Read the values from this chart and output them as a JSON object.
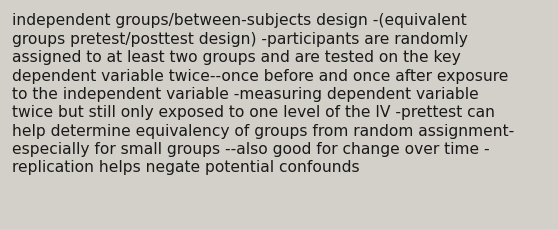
{
  "lines": [
    "independent groups/between-subjects design -(equivalent",
    "groups pretest/posttest design) -participants are randomly",
    "assigned to at least two groups and are tested on the key",
    "dependent variable twice--once before and once after exposure",
    "to the independent variable -measuring dependent variable",
    "twice but still only exposed to one level of the IV -prettest can",
    "help determine equivalency of groups from random assignment-",
    "especially for small groups --also good for change over time -",
    "replication helps negate potential confounds"
  ],
  "background_color": "#d3d0c9",
  "text_color": "#1a1a1a",
  "font_size": 11.2,
  "font_family": "DejaVu Sans",
  "fig_width": 5.58,
  "fig_height": 2.3,
  "dpi": 100
}
